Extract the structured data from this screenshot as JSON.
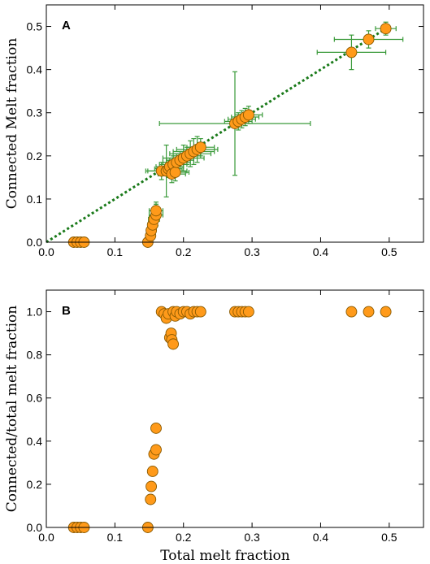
{
  "chart_data": [
    {
      "type": "scatter",
      "panel_label": "A",
      "title": "",
      "xlabel": "",
      "ylabel": "Connected Melt fraction",
      "xlim": [
        0.0,
        0.55
      ],
      "ylim": [
        0.0,
        0.55
      ],
      "xticks": [
        "0.0",
        "0.1",
        "0.2",
        "0.3",
        "0.4",
        "0.5"
      ],
      "yticks": [
        "0.0",
        "0.1",
        "0.2",
        "0.3",
        "0.4",
        "0.5"
      ],
      "grid": false,
      "legend": "none",
      "colors": {
        "marker_fill": "#ff9a1a",
        "marker_edge": "#8a5a00",
        "errorbar": "#3a9a3a",
        "fit_line": "#1a7a1a"
      },
      "fit_line": {
        "style": "dotted",
        "x": [
          0.0,
          0.5
        ],
        "y": [
          0.0,
          0.5
        ]
      },
      "points": [
        {
          "x": 0.04,
          "y": 0.0,
          "xerr": 0.0,
          "yerr": 0.0
        },
        {
          "x": 0.045,
          "y": 0.0,
          "xerr": 0.0,
          "yerr": 0.0
        },
        {
          "x": 0.05,
          "y": 0.0,
          "xerr": 0.0,
          "yerr": 0.0
        },
        {
          "x": 0.055,
          "y": 0.0,
          "xerr": 0.0,
          "yerr": 0.0
        },
        {
          "x": 0.148,
          "y": 0.0,
          "xerr": 0.005,
          "yerr": 0.0
        },
        {
          "x": 0.152,
          "y": 0.015,
          "xerr": 0.006,
          "yerr": 0.01
        },
        {
          "x": 0.153,
          "y": 0.027,
          "xerr": 0.006,
          "yerr": 0.015
        },
        {
          "x": 0.155,
          "y": 0.04,
          "xerr": 0.007,
          "yerr": 0.02
        },
        {
          "x": 0.157,
          "y": 0.053,
          "xerr": 0.008,
          "yerr": 0.025
        },
        {
          "x": 0.16,
          "y": 0.063,
          "xerr": 0.01,
          "yerr": 0.025
        },
        {
          "x": 0.16,
          "y": 0.073,
          "xerr": 0.01,
          "yerr": 0.02
        },
        {
          "x": 0.168,
          "y": 0.165,
          "xerr": 0.02,
          "yerr": 0.02
        },
        {
          "x": 0.175,
          "y": 0.165,
          "xerr": 0.03,
          "yerr": 0.06
        },
        {
          "x": 0.178,
          "y": 0.17,
          "xerr": 0.02,
          "yerr": 0.02
        },
        {
          "x": 0.18,
          "y": 0.175,
          "xerr": 0.02,
          "yerr": 0.02
        },
        {
          "x": 0.183,
          "y": 0.158,
          "xerr": 0.02,
          "yerr": 0.02
        },
        {
          "x": 0.185,
          "y": 0.18,
          "xerr": 0.02,
          "yerr": 0.02
        },
        {
          "x": 0.188,
          "y": 0.162,
          "xerr": 0.02,
          "yerr": 0.02
        },
        {
          "x": 0.19,
          "y": 0.185,
          "xerr": 0.02,
          "yerr": 0.02
        },
        {
          "x": 0.195,
          "y": 0.19,
          "xerr": 0.02,
          "yerr": 0.02
        },
        {
          "x": 0.2,
          "y": 0.195,
          "xerr": 0.03,
          "yerr": 0.03
        },
        {
          "x": 0.205,
          "y": 0.2,
          "xerr": 0.02,
          "yerr": 0.02
        },
        {
          "x": 0.21,
          "y": 0.205,
          "xerr": 0.03,
          "yerr": 0.03
        },
        {
          "x": 0.215,
          "y": 0.21,
          "xerr": 0.03,
          "yerr": 0.03
        },
        {
          "x": 0.22,
          "y": 0.215,
          "xerr": 0.03,
          "yerr": 0.03
        },
        {
          "x": 0.225,
          "y": 0.22,
          "xerr": 0.02,
          "yerr": 0.02
        },
        {
          "x": 0.275,
          "y": 0.275,
          "xerr": 0.11,
          "yerr": 0.12
        },
        {
          "x": 0.28,
          "y": 0.28,
          "xerr": 0.02,
          "yerr": 0.02
        },
        {
          "x": 0.285,
          "y": 0.285,
          "xerr": 0.02,
          "yerr": 0.02
        },
        {
          "x": 0.29,
          "y": 0.29,
          "xerr": 0.02,
          "yerr": 0.02
        },
        {
          "x": 0.295,
          "y": 0.295,
          "xerr": 0.02,
          "yerr": 0.02
        },
        {
          "x": 0.445,
          "y": 0.44,
          "xerr": 0.05,
          "yerr": 0.04
        },
        {
          "x": 0.47,
          "y": 0.47,
          "xerr": 0.05,
          "yerr": 0.02
        },
        {
          "x": 0.495,
          "y": 0.495,
          "xerr": 0.015,
          "yerr": 0.015
        }
      ]
    },
    {
      "type": "scatter",
      "panel_label": "B",
      "title": "",
      "xlabel": "Total melt fraction",
      "ylabel": "Connected/total melt fraction",
      "xlim": [
        0.0,
        0.55
      ],
      "ylim": [
        0.0,
        1.1
      ],
      "xticks": [
        "0.0",
        "0.1",
        "0.2",
        "0.3",
        "0.4",
        "0.5"
      ],
      "yticks": [
        "0.0",
        "0.2",
        "0.4",
        "0.6",
        "0.8",
        "1.0"
      ],
      "grid": false,
      "legend": "none",
      "colors": {
        "marker_fill": "#ff9a1a",
        "marker_edge": "#8a5a00"
      },
      "points": [
        {
          "x": 0.04,
          "y": 0.0
        },
        {
          "x": 0.045,
          "y": 0.0
        },
        {
          "x": 0.05,
          "y": 0.0
        },
        {
          "x": 0.055,
          "y": 0.0
        },
        {
          "x": 0.148,
          "y": 0.0
        },
        {
          "x": 0.152,
          "y": 0.13
        },
        {
          "x": 0.153,
          "y": 0.19
        },
        {
          "x": 0.155,
          "y": 0.26
        },
        {
          "x": 0.157,
          "y": 0.34
        },
        {
          "x": 0.16,
          "y": 0.36
        },
        {
          "x": 0.16,
          "y": 0.46
        },
        {
          "x": 0.168,
          "y": 1.0
        },
        {
          "x": 0.172,
          "y": 0.99
        },
        {
          "x": 0.175,
          "y": 0.97
        },
        {
          "x": 0.178,
          "y": 0.99
        },
        {
          "x": 0.18,
          "y": 0.88
        },
        {
          "x": 0.182,
          "y": 0.9
        },
        {
          "x": 0.183,
          "y": 0.87
        },
        {
          "x": 0.185,
          "y": 0.85
        },
        {
          "x": 0.185,
          "y": 1.0
        },
        {
          "x": 0.188,
          "y": 0.98
        },
        {
          "x": 0.19,
          "y": 1.0
        },
        {
          "x": 0.195,
          "y": 0.99
        },
        {
          "x": 0.2,
          "y": 1.0
        },
        {
          "x": 0.205,
          "y": 1.0
        },
        {
          "x": 0.21,
          "y": 0.99
        },
        {
          "x": 0.215,
          "y": 1.0
        },
        {
          "x": 0.22,
          "y": 1.0
        },
        {
          "x": 0.225,
          "y": 1.0
        },
        {
          "x": 0.275,
          "y": 1.0
        },
        {
          "x": 0.28,
          "y": 1.0
        },
        {
          "x": 0.285,
          "y": 1.0
        },
        {
          "x": 0.29,
          "y": 1.0
        },
        {
          "x": 0.295,
          "y": 1.0
        },
        {
          "x": 0.445,
          "y": 1.0
        },
        {
          "x": 0.47,
          "y": 1.0
        },
        {
          "x": 0.495,
          "y": 1.0
        }
      ]
    }
  ]
}
